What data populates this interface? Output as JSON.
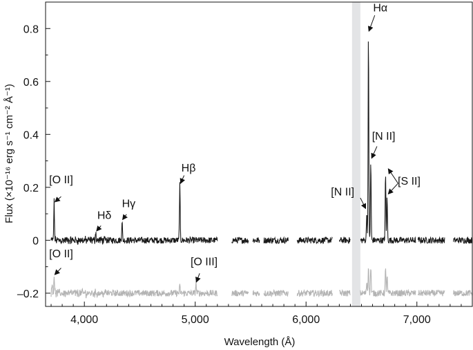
{
  "chart_data": {
    "type": "line",
    "title": "",
    "xlabel": "Wavelength (Å)",
    "ylabel": "Flux (×10⁻¹⁶ erg s⁻¹ cm⁻² Å⁻¹)",
    "xlim": [
      3650,
      7500
    ],
    "ylim": [
      -0.25,
      0.9
    ],
    "x_ticks": [
      4000,
      5000,
      6000,
      7000
    ],
    "x_tick_labels": [
      "4,000",
      "5,000",
      "6,000",
      "7,000"
    ],
    "y_ticks": [
      -0.2,
      0,
      0.2,
      0.4,
      0.6,
      0.8
    ],
    "y_tick_labels": [
      "–0.2",
      "0",
      "0.2",
      "0.4",
      "0.6",
      "0.8"
    ],
    "grid": false,
    "shaded_band": {
      "x": [
        6415,
        6490
      ],
      "color": "#e3e4e6"
    },
    "series": [
      {
        "color": "#1a1a1a",
        "baseline": 0.0,
        "noise": 0.012,
        "segments": [
          [
            3700,
            5200
          ],
          [
            5330,
            5480
          ],
          [
            5520,
            5580
          ],
          [
            5620,
            5840
          ],
          [
            5920,
            6240
          ],
          [
            6300,
            6400
          ],
          [
            6490,
            6990
          ],
          [
            7010,
            7250
          ],
          [
            7330,
            7500
          ]
        ],
        "lines": [
          {
            "x": 3727,
            "peak": 0.145
          },
          {
            "x": 4102,
            "peak": 0.035
          },
          {
            "x": 4340,
            "peak": 0.075
          },
          {
            "x": 4861,
            "peak": 0.21
          },
          {
            "x": 6548,
            "peak": 0.11
          },
          {
            "x": 6563,
            "peak": 0.78
          },
          {
            "x": 6584,
            "peak": 0.3
          },
          {
            "x": 6717,
            "peak": 0.25
          },
          {
            "x": 6731,
            "peak": 0.16
          }
        ]
      },
      {
        "color": "#b4b4b4",
        "baseline": -0.2,
        "noise": 0.012,
        "segments": [
          [
            3700,
            5200
          ],
          [
            5330,
            5480
          ],
          [
            5520,
            5580
          ],
          [
            5620,
            5840
          ],
          [
            5920,
            6240
          ],
          [
            6300,
            6400
          ],
          [
            6490,
            6990
          ],
          [
            7010,
            7250
          ],
          [
            7330,
            7500
          ]
        ],
        "lines": [
          {
            "x": 3710,
            "peak": -0.165
          },
          {
            "x": 3727,
            "peak": -0.13
          },
          {
            "x": 4861,
            "peak": -0.175
          },
          {
            "x": 5007,
            "peak": -0.16
          },
          {
            "x": 6548,
            "peak": -0.155
          },
          {
            "x": 6563,
            "peak": -0.09
          },
          {
            "x": 6584,
            "peak": -0.095
          },
          {
            "x": 6717,
            "peak": -0.11
          },
          {
            "x": 6731,
            "peak": -0.135
          }
        ]
      }
    ],
    "annotations": [
      {
        "name": "annotation-oii-top",
        "text": "[O II]",
        "label_at": [
          3790,
          0.215
        ],
        "arrow_from": [
          3790,
          0.165
        ],
        "arrow_to": [
          3735,
          0.145
        ]
      },
      {
        "name": "annotation-hdelta",
        "text": "Hδ",
        "label_at": [
          4180,
          0.08
        ],
        "arrow_from": [
          4150,
          0.055
        ],
        "arrow_to": [
          4110,
          0.035
        ]
      },
      {
        "name": "annotation-hgamma",
        "text": "Hγ",
        "label_at": [
          4400,
          0.125
        ],
        "arrow_from": [
          4380,
          0.098
        ],
        "arrow_to": [
          4345,
          0.078
        ]
      },
      {
        "name": "annotation-hbeta",
        "text": "Hβ",
        "label_at": [
          4940,
          0.26
        ],
        "arrow_from": [
          4900,
          0.245
        ],
        "arrow_to": [
          4868,
          0.215
        ]
      },
      {
        "name": "annotation-halpha",
        "text": "Hα",
        "label_at": [
          6670,
          0.865
        ],
        "arrow_from": [
          6620,
          0.85
        ],
        "arrow_to": [
          6567,
          0.79
        ]
      },
      {
        "name": "annotation-nii-right",
        "text": "[N II]",
        "label_at": [
          6700,
          0.38
        ],
        "arrow_from": [
          6640,
          0.355
        ],
        "arrow_to": [
          6592,
          0.31
        ]
      },
      {
        "name": "annotation-nii-left",
        "text": "[N II]",
        "label_at": [
          6330,
          0.17
        ],
        "arrow_from": [
          6490,
          0.16
        ],
        "arrow_to": [
          6538,
          0.12
        ]
      },
      {
        "name": "annotation-sii",
        "text": "[S II]",
        "label_at": [
          6930,
          0.21
        ],
        "arrow_from": [
          6830,
          0.215
        ],
        "arrow_to_list": [
          [
            6742,
            0.27
          ],
          [
            6742,
            0.175
          ]
        ]
      },
      {
        "name": "annotation-oii-bottom",
        "text": "[O II]",
        "label_at": [
          3790,
          -0.065
        ],
        "arrow_from": [
          3790,
          -0.105
        ],
        "arrow_to": [
          3733,
          -0.13
        ]
      },
      {
        "name": "annotation-oiii",
        "text": "[O III]",
        "label_at": [
          5080,
          -0.095
        ],
        "arrow_from": [
          5040,
          -0.125
        ],
        "arrow_to": [
          5010,
          -0.158
        ]
      }
    ]
  }
}
